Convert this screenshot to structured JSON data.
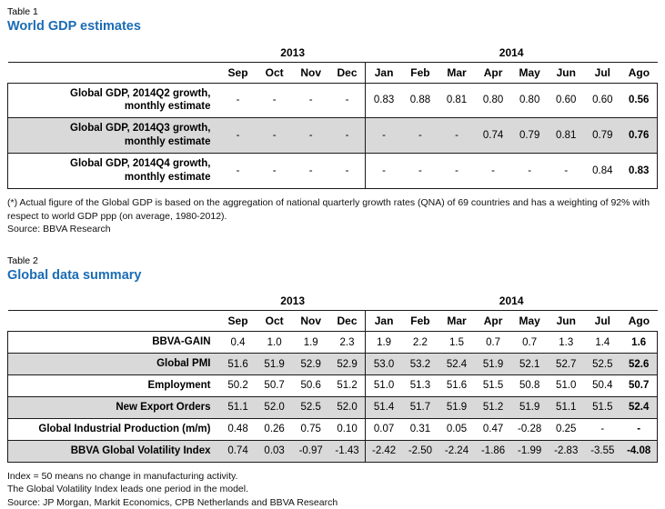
{
  "colors": {
    "title_blue": "#1b6cb5",
    "row_shade": "#d9d9d9",
    "line": "#1a1a1a"
  },
  "table1": {
    "caption": "Table 1",
    "title": "World GDP estimates",
    "year_groups": [
      {
        "label": "2013",
        "span": 4
      },
      {
        "label": "2014",
        "span": 8
      }
    ],
    "months": [
      "Sep",
      "Oct",
      "Nov",
      "Dec",
      "Jan",
      "Feb",
      "Mar",
      "Apr",
      "May",
      "Jun",
      "Jul",
      "Ago"
    ],
    "rows": [
      {
        "label": "Global GDP, 2014Q2 growth,\nmonthly estimate",
        "values": [
          "-",
          "-",
          "-",
          "-",
          "0.83",
          "0.88",
          "0.81",
          "0.80",
          "0.80",
          "0.60",
          "0.60",
          "0.56"
        ]
      },
      {
        "label": "Global GDP, 2014Q3 growth,\nmonthly estimate",
        "values": [
          "-",
          "-",
          "-",
          "-",
          "-",
          "-",
          "-",
          "0.74",
          "0.79",
          "0.81",
          "0.79",
          "0.76"
        ]
      },
      {
        "label": "Global GDP, 2014Q4 growth,\nmonthly estimate",
        "values": [
          "-",
          "-",
          "-",
          "-",
          "-",
          "-",
          "-",
          "-",
          "-",
          "-",
          "0.84",
          "0.83"
        ]
      }
    ],
    "footnotes": [
      "(*) Actual figure of the Global GDP is based on the aggregation of national quarterly growth rates (QNA) of 69 countries and has a weighting of 92% with respect to world GDP ppp (on average, 1980-2012).",
      "Source: BBVA Research"
    ]
  },
  "table2": {
    "caption": "Table 2",
    "title": "Global data summary",
    "year_groups": [
      {
        "label": "2013",
        "span": 4
      },
      {
        "label": "2014",
        "span": 8
      }
    ],
    "months": [
      "Sep",
      "Oct",
      "Nov",
      "Dec",
      "Jan",
      "Feb",
      "Mar",
      "Apr",
      "May",
      "Jun",
      "Jul",
      "Ago"
    ],
    "rows": [
      {
        "label": "BBVA-GAIN",
        "values": [
          "0.4",
          "1.0",
          "1.9",
          "2.3",
          "1.9",
          "2.2",
          "1.5",
          "0.7",
          "0.7",
          "1.3",
          "1.4",
          "1.6"
        ]
      },
      {
        "label": "Global PMI",
        "values": [
          "51.6",
          "51.9",
          "52.9",
          "52.9",
          "53.0",
          "53.2",
          "52.4",
          "51.9",
          "52.1",
          "52.7",
          "52.5",
          "52.6"
        ]
      },
      {
        "label": "Employment",
        "values": [
          "50.2",
          "50.7",
          "50.6",
          "51.2",
          "51.0",
          "51.3",
          "51.6",
          "51.5",
          "50.8",
          "51.0",
          "50.4",
          "50.7"
        ]
      },
      {
        "label": "New Export Orders",
        "values": [
          "51.1",
          "52.0",
          "52.5",
          "52.0",
          "51.4",
          "51.7",
          "51.9",
          "51.2",
          "51.9",
          "51.1",
          "51.5",
          "52.4"
        ]
      },
      {
        "label": "Global Industrial Production (m/m)",
        "values": [
          "0.48",
          "0.26",
          "0.75",
          "0.10",
          "0.07",
          "0.31",
          "0.05",
          "0.47",
          "-0.28",
          "0.25",
          "-",
          "-"
        ]
      },
      {
        "label": "BBVA Global Volatility Index",
        "values": [
          "0.74",
          "0.03",
          "-0.97",
          "-1.43",
          "-2.42",
          "-2.50",
          "-2.24",
          "-1.86",
          "-1.99",
          "-2.83",
          "-3.55",
          "-4.08"
        ]
      }
    ],
    "footnotes": [
      "Index = 50 means no change in manufacturing activity.",
      "The Global Volatility Index leads one period in the model.",
      "Source: JP Morgan, Markit Economics, CPB Netherlands and BBVA Research"
    ]
  }
}
